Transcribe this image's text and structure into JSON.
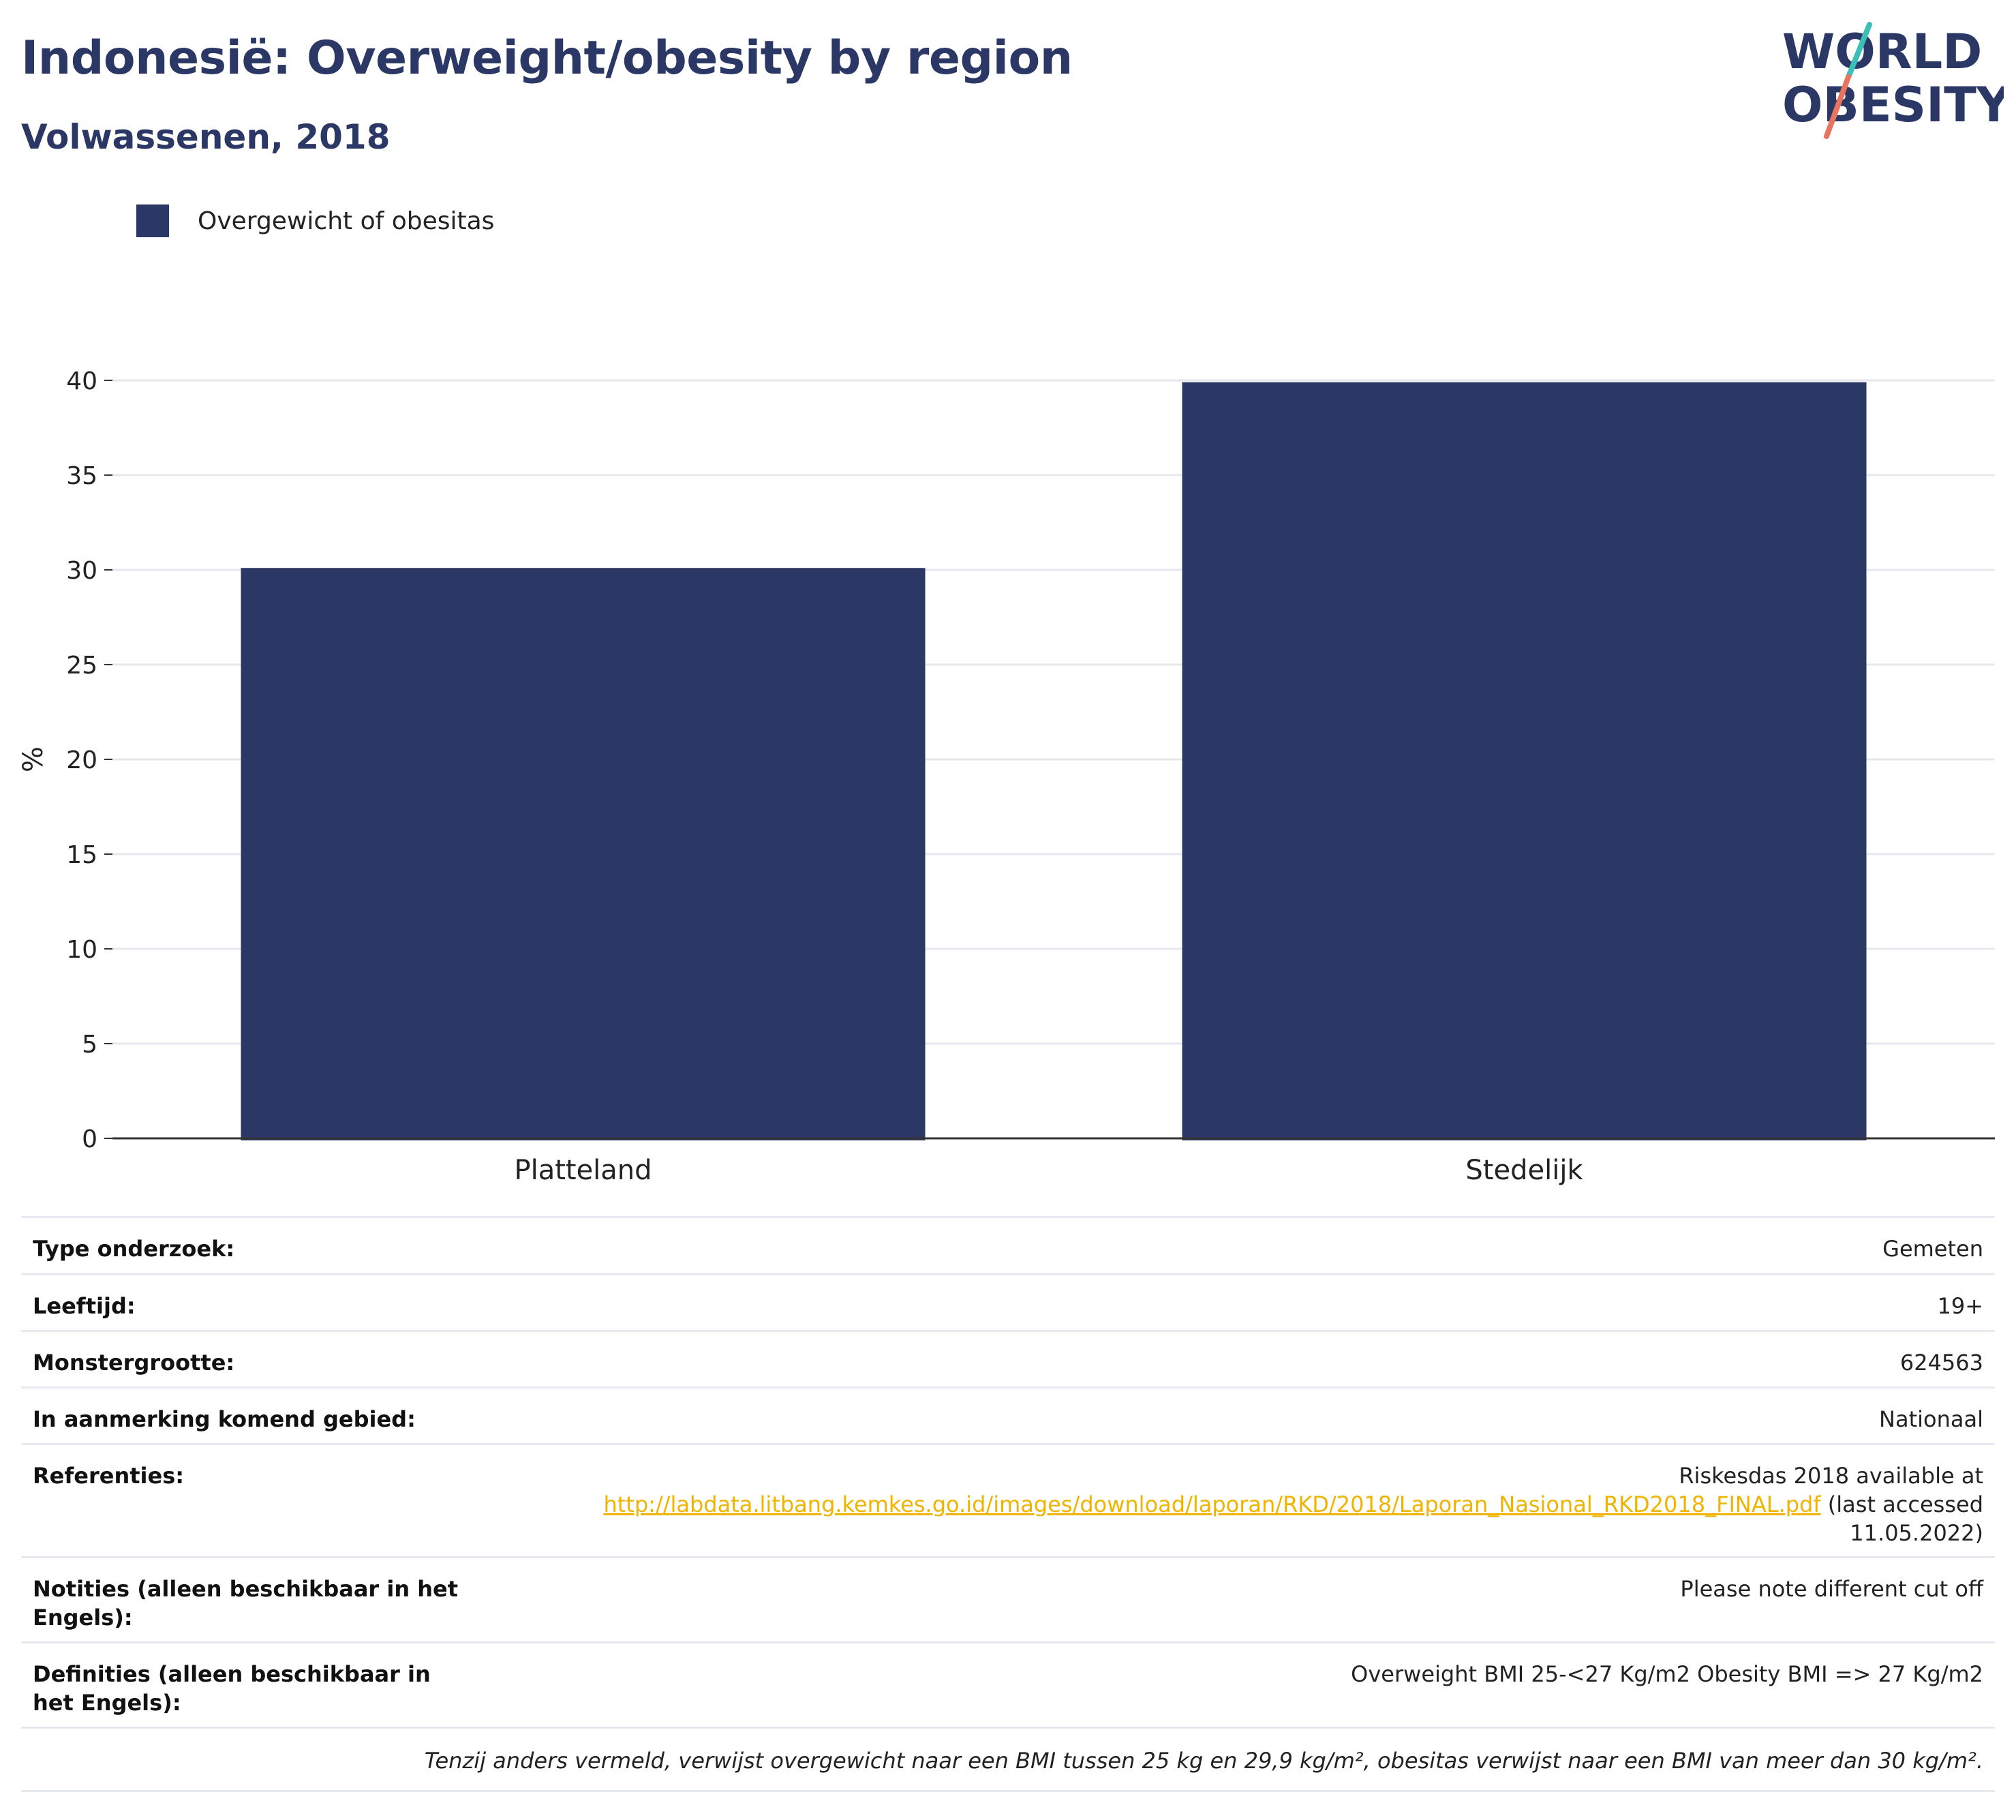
{
  "header": {
    "title": "Indonesië: Overweight/obesity by region",
    "subtitle": "Volwassenen, 2018"
  },
  "logo": {
    "line1": "WORLD",
    "line2": "OBESITY",
    "colors": {
      "text": "#2b3764",
      "accent_teal": "#3bbfb8",
      "accent_coral": "#e8735f"
    }
  },
  "legend": {
    "label": "Overgewicht of obesitas",
    "color": "#2b3764"
  },
  "chart_data": {
    "type": "bar",
    "categories": [
      "Platteland",
      "Stedelijk"
    ],
    "series": [
      {
        "name": "Overgewicht of obesitas",
        "values": [
          30.1,
          39.9
        ],
        "color": "#2b3764"
      }
    ],
    "ylabel": "%",
    "ylim": [
      0,
      40
    ],
    "yticks": [
      "0",
      "5",
      "10",
      "15",
      "20",
      "25",
      "30",
      "35",
      "40"
    ],
    "grid": true,
    "legend_position": "top-left"
  },
  "info": {
    "rows": [
      {
        "label": "Type onderzoek:",
        "value": "Gemeten"
      },
      {
        "label": "Leeftijd:",
        "value": "19+"
      },
      {
        "label": "Monstergrootte:",
        "value": "624563"
      },
      {
        "label": "In aanmerking komend gebied:",
        "value": "Nationaal"
      }
    ],
    "references": {
      "label": "Referenties:",
      "text_before": "Riskesdas 2018 available at",
      "link": "http://labdata.litbang.kemkes.go.id/images/download/laporan/RKD/2018/Laporan_Nasional_RKD2018_FINAL.pdf",
      "text_after": "(last accessed 11.05.2022)"
    },
    "notes": {
      "label": "Notities (alleen beschikbaar in het Engels):",
      "value": "Please note different cut off"
    },
    "definitions": {
      "label": "Definities (alleen beschikbaar in het Engels):",
      "value": "Overweight BMI 25-<27 Kg/m2 Obesity BMI => 27 Kg/m2"
    },
    "footnote": "Tenzij anders vermeld, verwijst overgewicht naar een BMI tussen 25 kg en 29,9 kg/m², obesitas verwijst naar een BMI van meer dan 30 kg/m²."
  }
}
